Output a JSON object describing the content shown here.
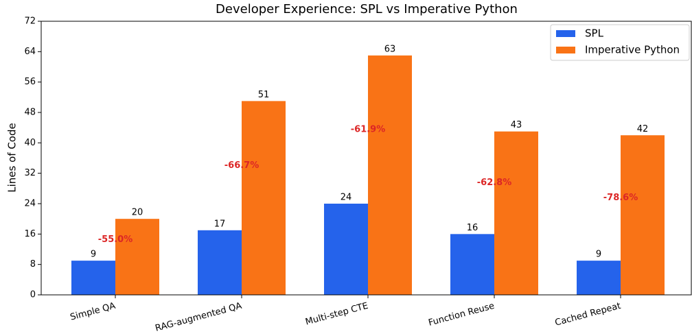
{
  "chart_data": {
    "type": "bar",
    "title": "Developer Experience: SPL vs Imperative Python",
    "ylabel": "Lines of Code",
    "categories": [
      "Simple QA",
      "RAG-augmented QA",
      "Multi-step CTE",
      "Function Reuse",
      "Cached Repeat"
    ],
    "series": [
      {
        "name": "SPL",
        "color": "#2563eb",
        "values": [
          9,
          17,
          24,
          16,
          9
        ]
      },
      {
        "name": "Imperative Python",
        "color": "#f97316",
        "values": [
          20,
          51,
          63,
          43,
          42
        ]
      }
    ],
    "annotations": [
      "-55.0%",
      "-66.7%",
      "-61.9%",
      "-62.8%",
      "-78.6%"
    ],
    "annotation_color": "#dc2626",
    "ylim": [
      0,
      72
    ],
    "yticks": [
      0,
      8,
      16,
      24,
      32,
      40,
      48,
      56,
      64,
      72
    ],
    "legend": "upper right"
  }
}
